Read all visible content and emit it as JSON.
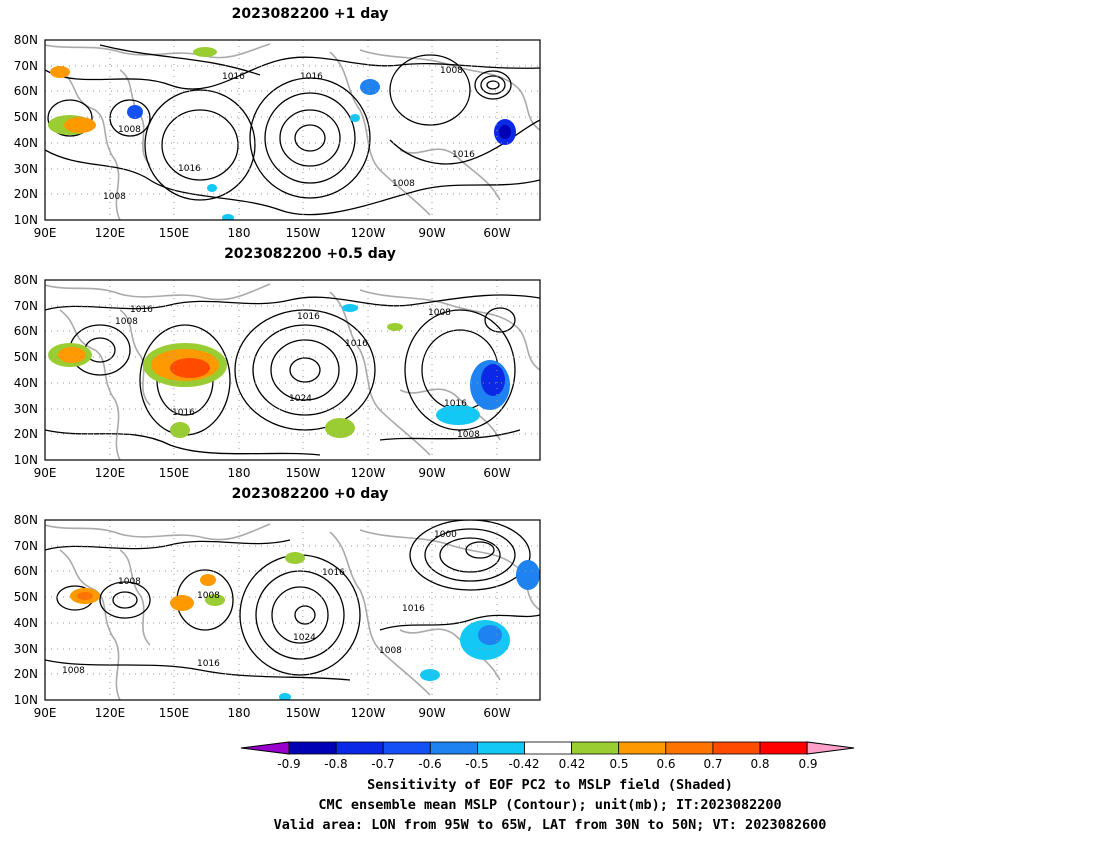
{
  "panels": [
    {
      "title": "2023082200  +1 day",
      "lat_labels": [
        "80N",
        "70N",
        "60N",
        "50N",
        "40N",
        "30N",
        "20N",
        "10N"
      ],
      "lon_labels": [
        "90E",
        "120E",
        "150E",
        "180",
        "150W",
        "120W",
        "90W",
        "60W"
      ],
      "contour_labels": [
        "1016",
        "1016",
        "1008",
        "1008",
        "1016",
        "1008",
        "1016",
        "1008"
      ]
    },
    {
      "title": "2023082200  +0.5 day",
      "lat_labels": [
        "80N",
        "70N",
        "60N",
        "50N",
        "40N",
        "30N",
        "20N",
        "10N"
      ],
      "lon_labels": [
        "90E",
        "120E",
        "150E",
        "180",
        "150W",
        "120W",
        "90W",
        "60W"
      ],
      "contour_labels": [
        "1016",
        "1008",
        "1016",
        "1008",
        "1016",
        "1024",
        "1016",
        "1016",
        "1008"
      ]
    },
    {
      "title": "2023082200  +0 day",
      "lat_labels": [
        "80N",
        "70N",
        "60N",
        "50N",
        "40N",
        "30N",
        "20N",
        "10N"
      ],
      "lon_labels": [
        "90E",
        "120E",
        "150E",
        "180",
        "150W",
        "120W",
        "90W",
        "60W"
      ],
      "contour_labels": [
        "1000",
        "1008",
        "1016",
        "1008",
        "1024",
        "1016",
        "1008",
        "1016",
        "1008"
      ]
    }
  ],
  "colorbar": {
    "labels": [
      "-0.9",
      "-0.8",
      "-0.7",
      "-0.6",
      "-0.5",
      "-0.42",
      "0.42",
      "0.5",
      "0.6",
      "0.7",
      "0.8",
      "0.9"
    ],
    "colors": [
      "#9900cc",
      "#0000b4",
      "#0a28e6",
      "#1450f5",
      "#1e82f0",
      "#14c8f5",
      "#ffffff",
      "#9acd32",
      "#ff9900",
      "#ff7300",
      "#ff4b00",
      "#ff0000",
      "#ffa0c8"
    ]
  },
  "caption": {
    "line1": "Sensitivity of EOF PC2 to MSLP field (Shaded)",
    "line2": "CMC ensemble mean MSLP (Contour); unit(mb); IT:2023082200",
    "line3": "Valid area: LON from 95W to 65W, LAT from 30N to 50N; VT: 2023082600"
  }
}
